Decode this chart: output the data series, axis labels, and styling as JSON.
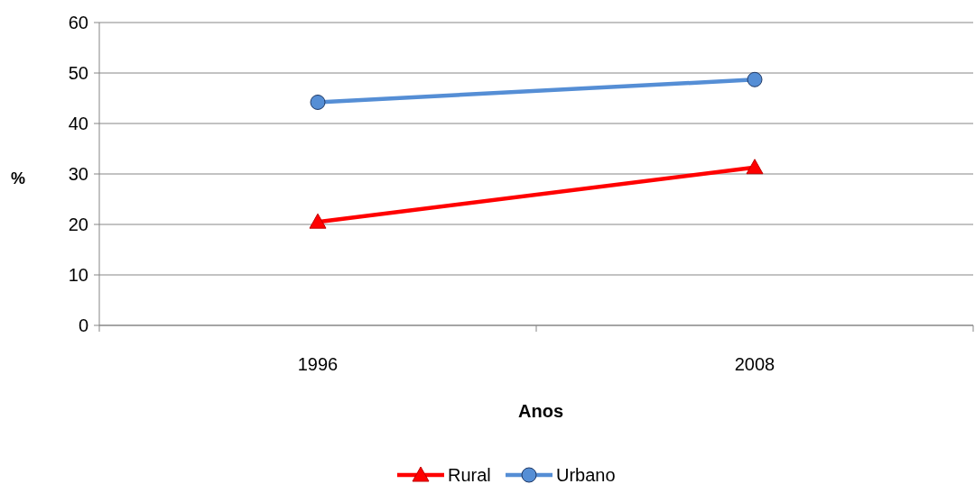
{
  "chart_data": {
    "type": "line",
    "xlabel": "Anos",
    "ylabel": "%",
    "categories": [
      "1996",
      "2008"
    ],
    "series": [
      {
        "name": "Rural",
        "color": "#ff0000",
        "marker": "triangle",
        "values": [
          20.5,
          31.3
        ]
      },
      {
        "name": "Urbano",
        "color": "#558ed5",
        "marker": "circle",
        "values": [
          44.2,
          48.7
        ]
      }
    ],
    "ylim": [
      0,
      60
    ],
    "yticks": [
      0,
      10,
      20,
      30,
      40,
      50,
      60
    ],
    "grid": "y",
    "legend": "bottom"
  }
}
